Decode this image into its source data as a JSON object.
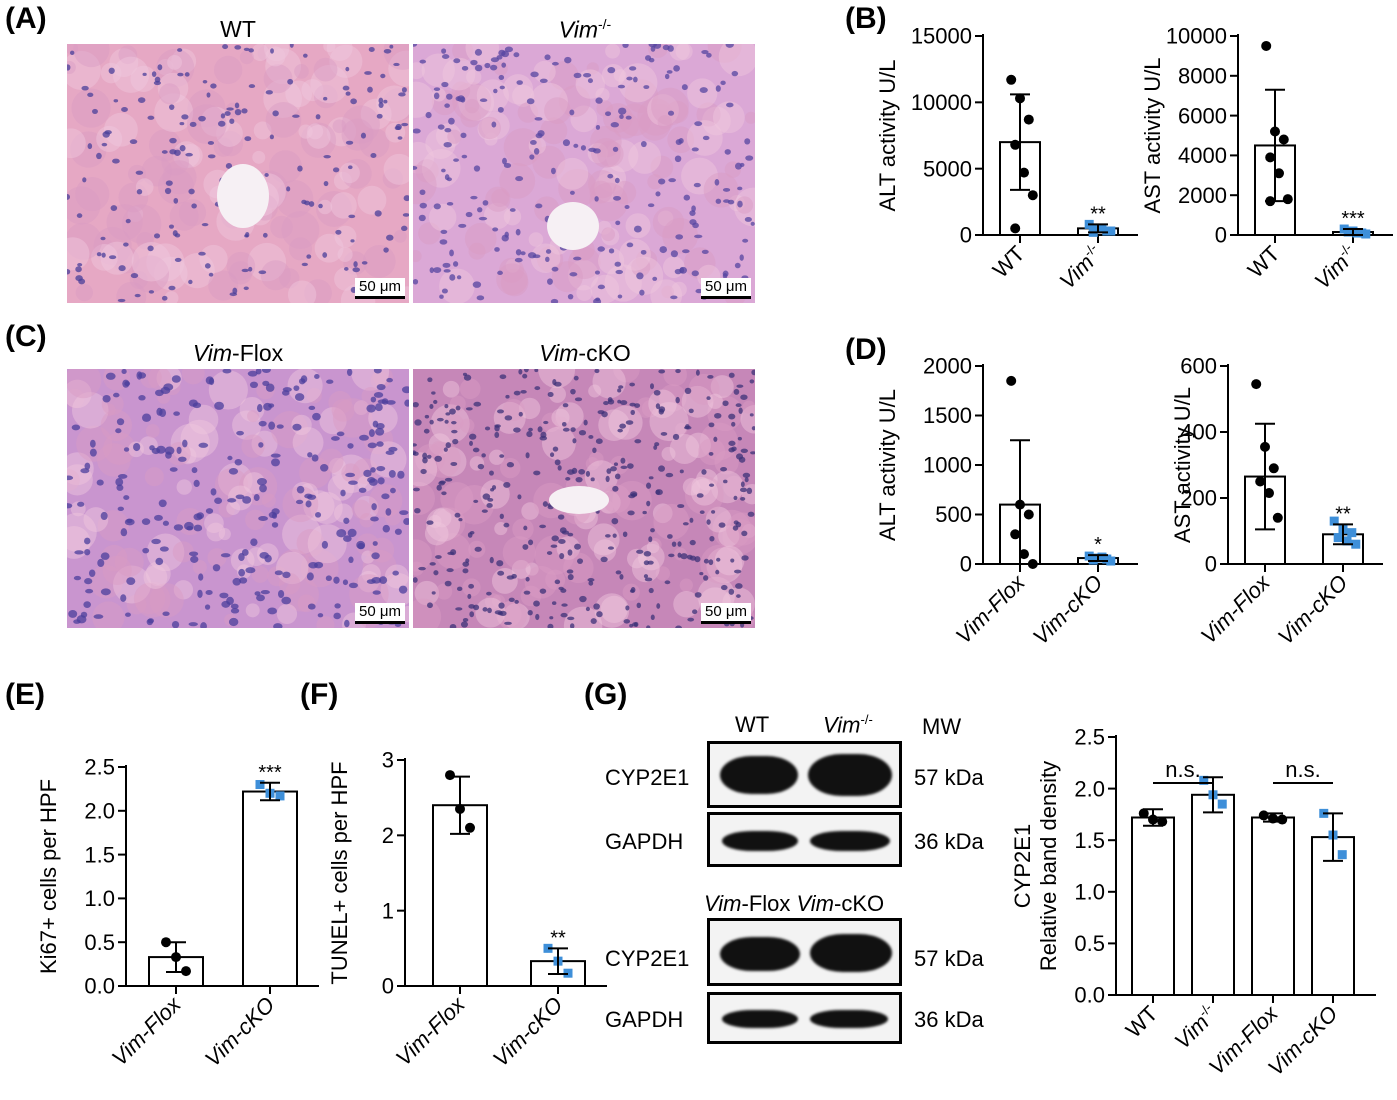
{
  "panels": {
    "A": {
      "letter": "(A)",
      "titles": [
        "WT",
        "Vim"
      ],
      "sup": "-/-",
      "scale": "50 μm"
    },
    "B": {
      "letter": "(B)"
    },
    "C": {
      "letter": "(C)",
      "titles": [
        "Vim",
        "Vim"
      ],
      "title_suffix": [
        "-Flox",
        "-cKO"
      ],
      "scale": "50 μm"
    },
    "D": {
      "letter": "(D)"
    },
    "E": {
      "letter": "(E)"
    },
    "F": {
      "letter": "(F)"
    },
    "G": {
      "letter": "(G)"
    }
  },
  "blot": {
    "head1": [
      "WT",
      "Vim",
      "-/-",
      "MW"
    ],
    "head2": [
      "Vim",
      "-Flox",
      "Vim",
      "-cKO"
    ],
    "rows": [
      {
        "label": "CYP2E1",
        "mw": "57 kDa"
      },
      {
        "label": "GAPDH",
        "mw": "36 kDa"
      },
      {
        "label": "CYP2E1",
        "mw": "57 kDa"
      },
      {
        "label": "GAPDH",
        "mw": "36 kDa"
      }
    ]
  },
  "colors": {
    "group1": "#000000",
    "group2": "#3e8fd9",
    "tissue_pink": "#e9b8d4",
    "nuclei": "#5a4aa0"
  },
  "chart_data": [
    {
      "id": "B-ALT",
      "type": "bar",
      "categories": [
        "WT",
        "Vim-/-"
      ],
      "values": [
        7000,
        500
      ],
      "errors": [
        3600,
        300
      ],
      "ylabel": "ALT activity U/L",
      "ylim": [
        0,
        15000
      ],
      "yticks": [
        0,
        5000,
        10000,
        15000
      ],
      "points": [
        [
          11700,
          10300,
          8700,
          6800,
          4700,
          3000,
          500
        ],
        [
          800,
          500,
          300,
          200,
          500,
          300
        ]
      ],
      "significance": [
        "",
        "**"
      ]
    },
    {
      "id": "B-AST",
      "type": "bar",
      "categories": [
        "WT",
        "Vim-/-"
      ],
      "values": [
        4500,
        150
      ],
      "errors": [
        2800,
        150
      ],
      "ylabel": "AST activity U/L",
      "ylim": [
        0,
        10000
      ],
      "yticks": [
        0,
        2000,
        4000,
        6000,
        8000,
        10000
      ],
      "points": [
        [
          9500,
          5200,
          4800,
          3900,
          3100,
          1800,
          1700
        ],
        [
          300,
          200,
          100,
          150,
          100,
          50
        ]
      ],
      "significance": [
        "",
        "***"
      ]
    },
    {
      "id": "D-ALT",
      "type": "bar",
      "categories": [
        "Vim-Flox",
        "Vim-cKO"
      ],
      "values": [
        600,
        60
      ],
      "errors": [
        650,
        30
      ],
      "ylabel": "ALT activity U/L",
      "ylim": [
        0,
        2000
      ],
      "yticks": [
        0,
        500,
        1000,
        1500,
        2000
      ],
      "points": [
        [
          1850,
          600,
          500,
          300,
          100,
          0
        ],
        [
          80,
          60,
          50,
          40,
          70,
          30
        ]
      ],
      "significance": [
        "",
        "*"
      ]
    },
    {
      "id": "D-AST",
      "type": "bar",
      "categories": [
        "Vim-Flox",
        "Vim-cKO"
      ],
      "values": [
        265,
        90
      ],
      "errors": [
        160,
        30
      ],
      "ylabel": "AST activity U/L",
      "ylim": [
        0,
        600
      ],
      "yticks": [
        0,
        200,
        400,
        600
      ],
      "points": [
        [
          545,
          355,
          290,
          250,
          215,
          140
        ],
        [
          130,
          105,
          95,
          80,
          70,
          60
        ]
      ],
      "significance": [
        "",
        "**"
      ]
    },
    {
      "id": "E",
      "type": "bar",
      "categories": [
        "Vim-Flox",
        "Vim-cKO"
      ],
      "values": [
        0.33,
        2.22
      ],
      "errors": [
        0.17,
        0.1
      ],
      "ylabel": "Ki67+ cells per HPF",
      "ylim": [
        0,
        2.5
      ],
      "yticks": [
        0,
        0.5,
        1.0,
        1.5,
        2.0,
        2.5
      ],
      "points": [
        [
          0.5,
          0.33,
          0.17
        ],
        [
          2.3,
          2.2,
          2.17
        ]
      ],
      "significance": [
        "",
        "***"
      ]
    },
    {
      "id": "F",
      "type": "bar",
      "categories": [
        "Vim-Flox",
        "Vim-cKO"
      ],
      "values": [
        2.4,
        0.33
      ],
      "errors": [
        0.38,
        0.17
      ],
      "ylabel": "TUNEL+ cells per HPF",
      "ylim": [
        0,
        3
      ],
      "yticks": [
        0,
        1,
        2,
        3
      ],
      "points": [
        [
          2.8,
          2.35,
          2.1
        ],
        [
          0.5,
          0.33,
          0.17
        ]
      ],
      "significance": [
        "",
        "**"
      ]
    },
    {
      "id": "G",
      "type": "bar",
      "categories": [
        "WT",
        "Vim-/-",
        "Vim-Flox",
        "Vim-cKO"
      ],
      "values": [
        1.72,
        1.94,
        1.72,
        1.53
      ],
      "errors": [
        0.08,
        0.17,
        0.04,
        0.23
      ],
      "ylabel": "CYP2E1 Relative band density",
      "ylim": [
        0,
        2.5
      ],
      "yticks": [
        0,
        0.5,
        1.0,
        1.5,
        2.0,
        2.5
      ],
      "points": [
        [
          1.76,
          1.7,
          1.68
        ],
        [
          2.08,
          1.94,
          1.85
        ],
        [
          1.74,
          1.71,
          1.7
        ],
        [
          1.76,
          1.55,
          1.36
        ]
      ],
      "brackets": [
        {
          "from": 0,
          "to": 1,
          "label": "n.s."
        },
        {
          "from": 2,
          "to": 3,
          "label": "n.s."
        }
      ]
    }
  ]
}
